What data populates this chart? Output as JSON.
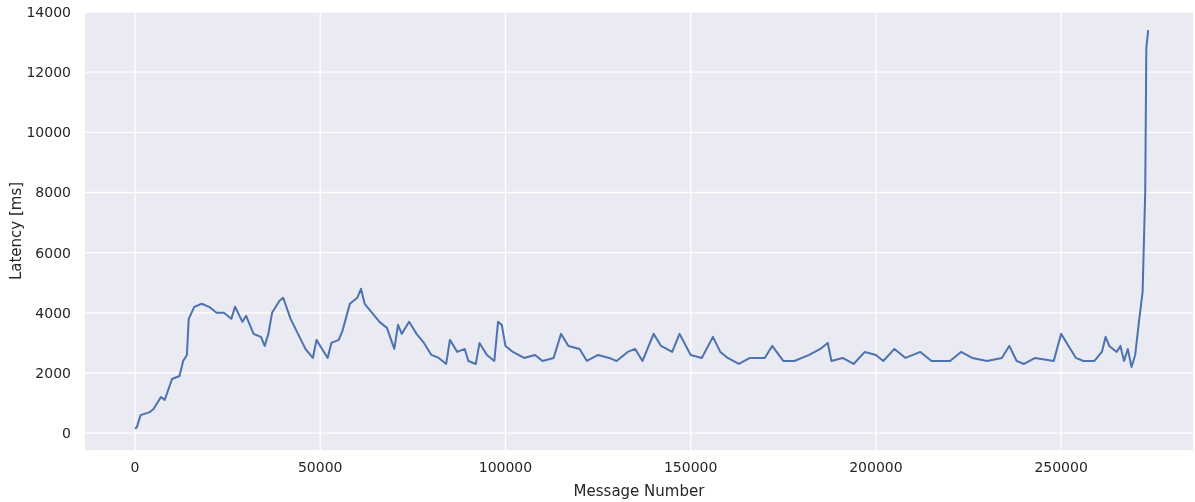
{
  "chart_data": {
    "type": "line",
    "xlabel": "Message Number",
    "ylabel": "Latency [ms]",
    "xlim": [
      -13500,
      285600
    ],
    "xticks": [
      0,
      50000,
      100000,
      150000,
      200000,
      250000
    ],
    "ylim": [
      -560,
      14000
    ],
    "yticks": [
      0,
      2000,
      4000,
      6000,
      8000,
      10000,
      12000,
      14000
    ],
    "grid": true,
    "marker": "none",
    "line_style": "solid",
    "series": [
      {
        "color": "#4c72b0",
        "x": [
          0,
          500,
          1500,
          4000,
          5000,
          7000,
          8000,
          10000,
          12000,
          13000,
          14000,
          14500,
          16000,
          18000,
          20000,
          22000,
          24000,
          26000,
          27000,
          29000,
          30000,
          32000,
          34000,
          35000,
          36000,
          37000,
          39000,
          40000,
          42000,
          44000,
          46000,
          48000,
          49000,
          50000,
          52000,
          53000,
          55000,
          56000,
          58000,
          60000,
          61000,
          62000,
          64000,
          66000,
          68000,
          70000,
          71000,
          72000,
          74000,
          76000,
          78000,
          80000,
          82000,
          84000,
          85000,
          87000,
          89000,
          90000,
          92000,
          93000,
          95000,
          97000,
          98000,
          99000,
          100000,
          102000,
          105000,
          108000,
          110000,
          113000,
          115000,
          117000,
          120000,
          122000,
          125000,
          128000,
          130000,
          133000,
          135000,
          137000,
          140000,
          142000,
          145000,
          147000,
          150000,
          153000,
          156000,
          158000,
          160000,
          163000,
          166000,
          170000,
          172000,
          175000,
          178000,
          182000,
          185000,
          187000,
          188000,
          191000,
          194000,
          197000,
          200000,
          202000,
          205000,
          208000,
          212000,
          215000,
          220000,
          223000,
          226000,
          230000,
          234000,
          236000,
          238000,
          240000,
          243000,
          248000,
          250000,
          252000,
          254000,
          256000,
          259000,
          261000,
          262000,
          263000,
          265000,
          266000,
          267000,
          268000,
          269000,
          270000,
          271000,
          272000,
          272700,
          273000,
          273500
        ],
        "values": [
          150,
          200,
          600,
          700,
          800,
          1200,
          1100,
          1800,
          1900,
          2400,
          2600,
          3800,
          4200,
          4300,
          4200,
          4000,
          4000,
          3800,
          4200,
          3700,
          3900,
          3300,
          3200,
          2900,
          3300,
          4000,
          4400,
          4500,
          3800,
          3300,
          2800,
          2500,
          3100,
          2900,
          2500,
          3000,
          3100,
          3400,
          4300,
          4500,
          4800,
          4300,
          4000,
          3700,
          3500,
          2800,
          3600,
          3300,
          3700,
          3300,
          3000,
          2600,
          2500,
          2300,
          3100,
          2700,
          2800,
          2400,
          2300,
          3000,
          2600,
          2400,
          3700,
          3600,
          2900,
          2700,
          2500,
          2600,
          2400,
          2500,
          3300,
          2900,
          2800,
          2400,
          2600,
          2500,
          2400,
          2700,
          2800,
          2400,
          3300,
          2900,
          2700,
          3300,
          2600,
          2500,
          3200,
          2700,
          2500,
          2300,
          2500,
          2500,
          2900,
          2400,
          2400,
          2600,
          2800,
          3000,
          2400,
          2500,
          2300,
          2700,
          2600,
          2400,
          2800,
          2500,
          2700,
          2400,
          2400,
          2700,
          2500,
          2400,
          2500,
          2900,
          2400,
          2300,
          2500,
          2400,
          3300,
          2900,
          2500,
          2400,
          2400,
          2700,
          3200,
          2900,
          2700,
          2900,
          2400,
          2800,
          2200,
          2600,
          3700,
          4700,
          8000,
          12800,
          13400
        ]
      }
    ]
  }
}
